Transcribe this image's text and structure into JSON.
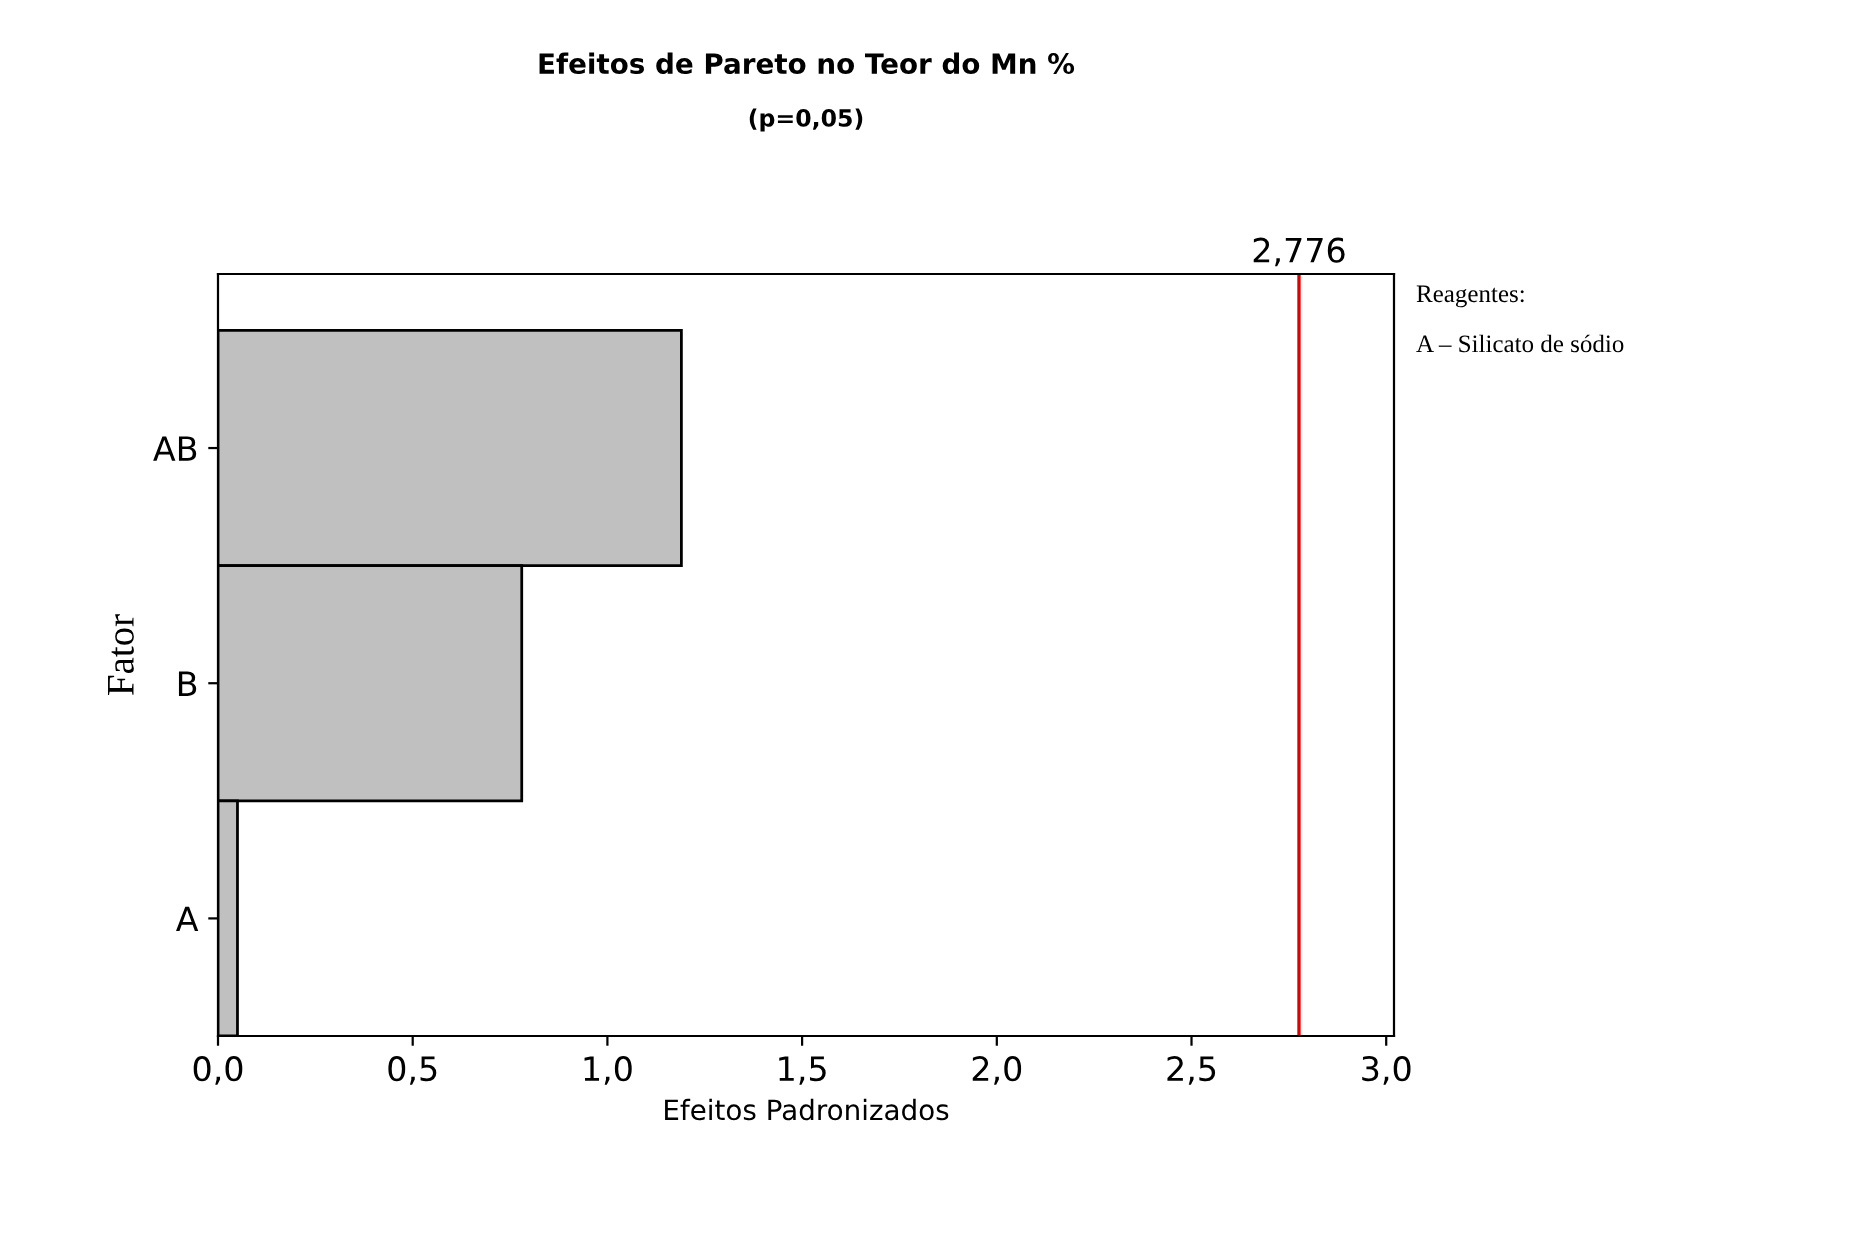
{
  "chart_data": {
    "type": "bar",
    "orientation": "horizontal",
    "title": "Efeitos de Pareto no Teor do Mn %",
    "subtitle": "(p=0,05)",
    "xlabel": "Efeitos Padronizados",
    "ylabel": "Fator",
    "categories": [
      "AB",
      "B",
      "A"
    ],
    "series": [
      {
        "color": "#c0c0c0",
        "values": [
          1.19,
          0.78,
          0.05
        ]
      }
    ],
    "xlim": [
      0,
      3.02
    ],
    "xticks": [
      {
        "value": 0,
        "label": "0,0"
      },
      {
        "value": 0.5,
        "label": "0,5"
      },
      {
        "value": 1,
        "label": "1,0"
      },
      {
        "value": 1.5,
        "label": "1,5"
      },
      {
        "value": 2,
        "label": "2,0"
      },
      {
        "value": 2.5,
        "label": "2,5"
      },
      {
        "value": 3,
        "label": "3,0"
      }
    ],
    "ref_lines": [
      {
        "axis": "x",
        "value": 2.776,
        "label": "2,776",
        "color": "#e00000"
      }
    ],
    "annotations": [
      "Reagentes:",
      "A – Silicato de sódio"
    ],
    "grid": false,
    "legend": false
  }
}
